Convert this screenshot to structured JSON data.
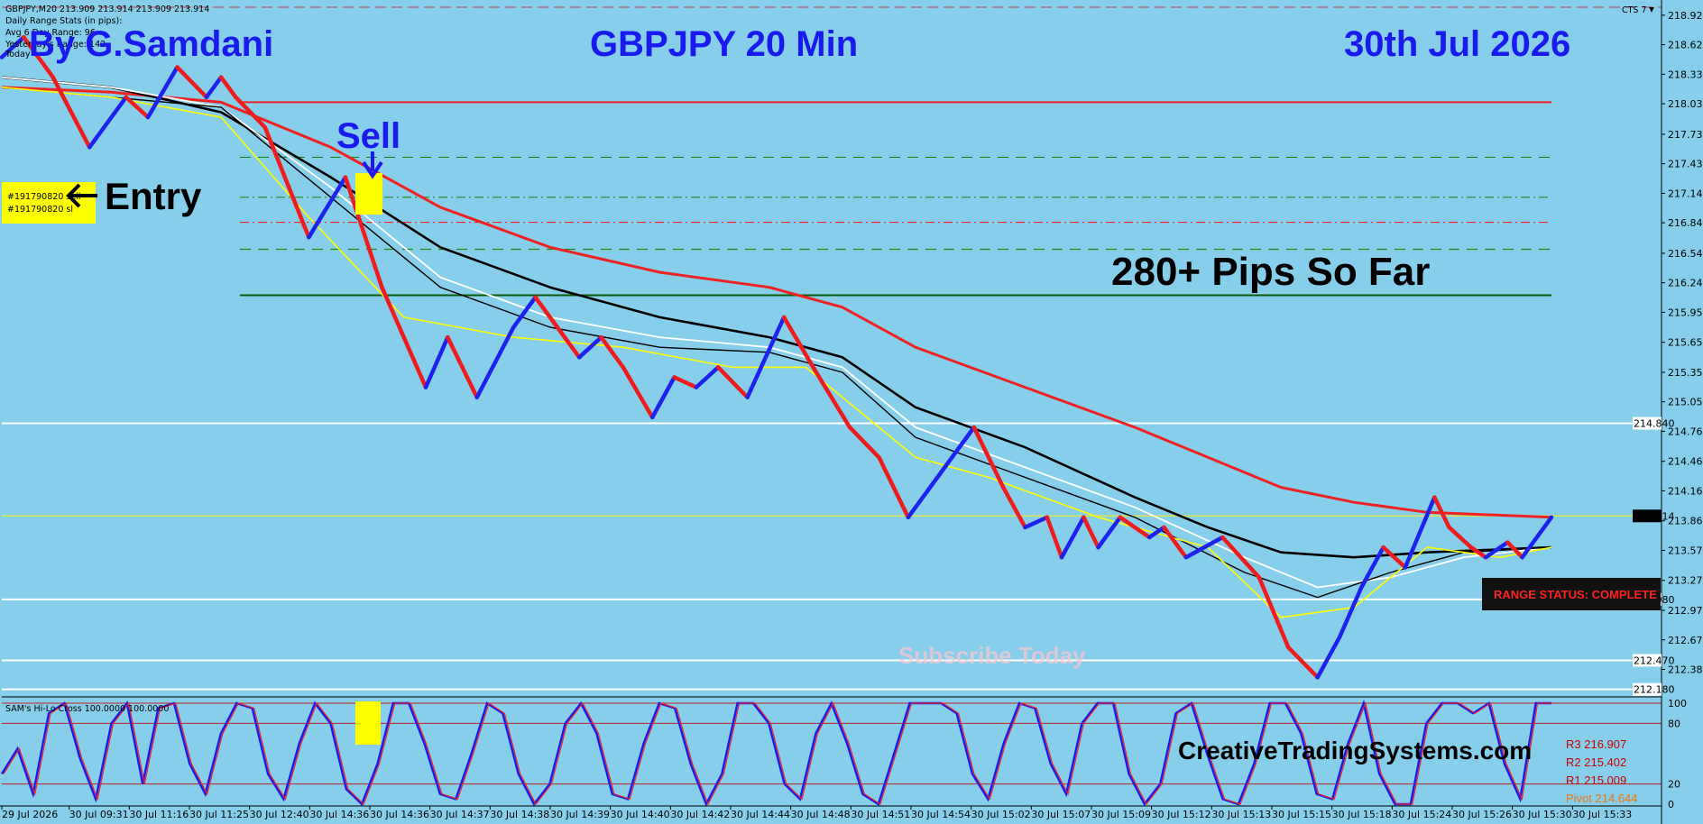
{
  "header": {
    "symbol_line": "GBPJPY,M20  213.909 213.914 213.909 213.914",
    "stats_lines": [
      "Daily Range Stats (in pips):",
      "Avg 6 Day Range: 96",
      "Yesterday's Range: 142",
      "Today"
    ],
    "corner_label": "CTS 7"
  },
  "overlays": {
    "author": "By G.Samdani",
    "chart_title": "GBPJPY 20 Min",
    "date": "30th Jul 2026",
    "sell_label": "Sell",
    "entry_label": "Entry",
    "order_lines": [
      "#191790820 sell",
      "#191790820 sl"
    ],
    "pips_label": "280+ Pips So Far",
    "watermark": "Subscribe Today",
    "range_status": "RANGE STATUS: COMPLETE",
    "website": "CreativeTradingSystems.com",
    "indicator_label": "SAM's Hi-Lo Cross 100.0000 100.0000"
  },
  "colors": {
    "background": "#87ceeb",
    "up": "#1e22ee",
    "down": "#ee1c1c",
    "ema_yellow": "#ffff00",
    "ema_white": "#ffffff",
    "ema_black": "#000000",
    "ema_red": "#ee2222",
    "overlay_blue": "#1a1aee",
    "highlight": "#ffff00"
  },
  "chart_data": {
    "type": "line",
    "title": "GBPJPY 20 Min",
    "x_tick_labels": [
      "29 Jul 2026",
      "30 Jul 09:31",
      "30 Jul 11:16",
      "30 Jul 11:25",
      "30 Jul 12:40",
      "30 Jul 14:36",
      "30 Jul 14:36",
      "30 Jul 14:37",
      "30 Jul 14:38",
      "30 Jul 14:39",
      "30 Jul 14:40",
      "30 Jul 14:42",
      "30 Jul 14:44",
      "30 Jul 14:48",
      "30 Jul 14:51",
      "30 Jul 14:54",
      "30 Jul 15:02",
      "30 Jul 15:07",
      "30 Jul 15:09",
      "30 Jul 15:12",
      "30 Jul 15:13",
      "30 Jul 15:15",
      "30 Jul 15:18",
      "30 Jul 15:24",
      "30 Jul 15:26",
      "30 Jul 15:30",
      "30 Jul 15:33"
    ],
    "y_ticks": [
      218.92,
      218.625,
      218.33,
      218.035,
      217.73,
      217.435,
      217.14,
      216.845,
      216.54,
      216.245,
      215.95,
      215.65,
      215.35,
      215.055,
      214.76,
      214.46,
      214.165,
      213.865,
      213.57,
      213.27,
      212.97,
      212.675,
      212.38
    ],
    "ylim": [
      212.15,
      219.0
    ],
    "y_tick_labels": [
      "218.920",
      "218.625",
      "218.330",
      "218.035",
      "217.730",
      "217.435",
      "217.140",
      "216.845",
      "216.540",
      "216.245",
      "215.950",
      "215.650",
      "215.350",
      "215.055",
      "214.760",
      "214.460",
      "214.165",
      "213.865",
      "213.570",
      "213.270",
      "212.970",
      "212.675",
      "212.380"
    ],
    "price_tags": [
      {
        "value": 214.84,
        "label": "214.840"
      },
      {
        "value": 213.914,
        "label": "213.914"
      },
      {
        "value": 213.08,
        "label": "213.080"
      },
      {
        "value": 212.47,
        "label": "212.470"
      },
      {
        "value": 212.18,
        "label": "212.180"
      }
    ],
    "renko_path": [
      [
        0,
        218.5
      ],
      [
        3,
        218.7
      ],
      [
        7,
        218.3
      ],
      [
        12,
        217.6
      ],
      [
        17,
        218.1
      ],
      [
        20,
        217.9
      ],
      [
        24,
        218.4
      ],
      [
        28,
        218.1
      ],
      [
        30,
        218.3
      ],
      [
        32,
        218.1
      ],
      [
        36,
        217.8
      ],
      [
        42,
        216.7
      ],
      [
        47,
        217.3
      ],
      [
        52,
        216.2
      ],
      [
        58,
        215.2
      ],
      [
        61,
        215.7
      ],
      [
        65,
        215.1
      ],
      [
        70,
        215.8
      ],
      [
        73,
        216.1
      ],
      [
        77,
        215.7
      ],
      [
        79,
        215.5
      ],
      [
        82,
        215.7
      ],
      [
        85,
        215.4
      ],
      [
        89,
        214.9
      ],
      [
        92,
        215.3
      ],
      [
        95,
        215.2
      ],
      [
        98,
        215.4
      ],
      [
        102,
        215.1
      ],
      [
        107,
        215.9
      ],
      [
        111,
        215.4
      ],
      [
        116,
        214.8
      ],
      [
        120,
        214.5
      ],
      [
        124,
        213.9
      ],
      [
        129,
        214.4
      ],
      [
        133,
        214.8
      ],
      [
        137,
        214.2
      ],
      [
        140,
        213.8
      ],
      [
        143,
        213.9
      ],
      [
        145,
        213.5
      ],
      [
        148,
        213.9
      ],
      [
        150,
        213.6
      ],
      [
        153,
        213.9
      ],
      [
        157,
        213.7
      ],
      [
        159,
        213.8
      ],
      [
        162,
        213.5
      ],
      [
        167,
        213.7
      ],
      [
        172,
        213.3
      ],
      [
        176,
        212.6
      ],
      [
        180,
        212.3
      ],
      [
        183,
        212.7
      ],
      [
        186,
        213.2
      ],
      [
        189,
        213.6
      ],
      [
        192,
        213.4
      ],
      [
        196,
        214.1
      ],
      [
        198,
        213.8
      ],
      [
        201,
        213.6
      ],
      [
        203,
        213.5
      ],
      [
        206,
        213.65
      ],
      [
        208,
        213.5
      ],
      [
        212,
        213.9
      ]
    ],
    "ema_yellow": [
      [
        0,
        218.2
      ],
      [
        15,
        218.1
      ],
      [
        30,
        217.9
      ],
      [
        42,
        216.9
      ],
      [
        55,
        215.9
      ],
      [
        70,
        215.7
      ],
      [
        85,
        215.6
      ],
      [
        100,
        215.4
      ],
      [
        110,
        215.4
      ],
      [
        125,
        214.5
      ],
      [
        135,
        214.3
      ],
      [
        150,
        213.9
      ],
      [
        165,
        213.6
      ],
      [
        175,
        212.9
      ],
      [
        185,
        213.0
      ],
      [
        195,
        213.6
      ],
      [
        205,
        213.5
      ],
      [
        212,
        213.6
      ]
    ],
    "ema_white": [
      [
        0,
        218.3
      ],
      [
        15,
        218.2
      ],
      [
        30,
        218.0
      ],
      [
        45,
        217.2
      ],
      [
        60,
        216.3
      ],
      [
        75,
        215.9
      ],
      [
        90,
        215.7
      ],
      [
        105,
        215.6
      ],
      [
        115,
        215.4
      ],
      [
        125,
        214.8
      ],
      [
        140,
        214.4
      ],
      [
        155,
        214.0
      ],
      [
        170,
        213.5
      ],
      [
        180,
        213.2
      ],
      [
        190,
        213.3
      ],
      [
        200,
        213.5
      ],
      [
        212,
        213.6
      ]
    ],
    "ema_black": [
      [
        0,
        218.2
      ],
      [
        15,
        218.1
      ],
      [
        30,
        218.0
      ],
      [
        45,
        217.1
      ],
      [
        60,
        216.2
      ],
      [
        75,
        215.8
      ],
      [
        90,
        215.6
      ],
      [
        105,
        215.55
      ],
      [
        115,
        215.35
      ],
      [
        125,
        214.7
      ],
      [
        140,
        214.3
      ],
      [
        155,
        213.9
      ],
      [
        170,
        213.35
      ],
      [
        180,
        213.1
      ],
      [
        190,
        213.35
      ],
      [
        200,
        213.55
      ],
      [
        212,
        213.6
      ]
    ],
    "ema_black_thick": [
      [
        0,
        218.3
      ],
      [
        15,
        218.2
      ],
      [
        30,
        217.95
      ],
      [
        45,
        217.3
      ],
      [
        60,
        216.6
      ],
      [
        75,
        216.2
      ],
      [
        90,
        215.9
      ],
      [
        105,
        215.7
      ],
      [
        115,
        215.5
      ],
      [
        125,
        215.0
      ],
      [
        140,
        214.6
      ],
      [
        155,
        214.1
      ],
      [
        165,
        213.8
      ],
      [
        175,
        213.55
      ],
      [
        185,
        213.5
      ],
      [
        195,
        213.55
      ],
      [
        212,
        213.6
      ]
    ],
    "ema_red": [
      [
        0,
        218.2
      ],
      [
        15,
        218.15
      ],
      [
        30,
        218.05
      ],
      [
        45,
        217.6
      ],
      [
        60,
        217.0
      ],
      [
        75,
        216.6
      ],
      [
        90,
        216.35
      ],
      [
        105,
        216.2
      ],
      [
        115,
        216.0
      ],
      [
        125,
        215.6
      ],
      [
        140,
        215.2
      ],
      [
        155,
        214.8
      ],
      [
        165,
        214.5
      ],
      [
        175,
        214.2
      ],
      [
        185,
        214.05
      ],
      [
        195,
        213.95
      ],
      [
        212,
        213.9
      ]
    ],
    "horizontal_levels": [
      {
        "value": 218.05,
        "color": "#ee2222",
        "style": "solid"
      },
      {
        "value": 217.5,
        "color": "#1a8a1a",
        "style": "dashed"
      },
      {
        "value": 217.1,
        "color": "#1a8a1a",
        "style": "dashdot"
      },
      {
        "value": 216.85,
        "color": "#ee2222",
        "style": "dashdot"
      },
      {
        "value": 216.58,
        "color": "#1a8a1a",
        "style": "dashed"
      },
      {
        "value": 216.12,
        "color": "#0a5a0a",
        "style": "solid"
      }
    ],
    "oscillator": {
      "name": "SAM's Hi-Lo Cross",
      "ylim": [
        0,
        100
      ],
      "y_tick_labels": [
        "100",
        "80",
        "20",
        "0"
      ],
      "levels": [
        80,
        20
      ],
      "values": [
        30,
        55,
        10,
        90,
        100,
        45,
        5,
        80,
        100,
        20,
        95,
        100,
        40,
        10,
        70,
        100,
        95,
        30,
        5,
        60,
        100,
        80,
        15,
        0,
        40,
        100,
        100,
        60,
        10,
        5,
        50,
        100,
        90,
        30,
        0,
        20,
        80,
        100,
        70,
        10,
        5,
        60,
        100,
        95,
        40,
        0,
        30,
        100,
        100,
        80,
        20,
        5,
        70,
        100,
        60,
        10,
        0,
        50,
        100,
        100,
        100,
        90,
        30,
        5,
        60,
        100,
        95,
        40,
        10,
        80,
        100,
        100,
        30,
        0,
        20,
        90,
        100,
        50,
        5,
        0,
        40,
        100,
        100,
        70,
        10,
        5,
        60,
        100,
        30,
        0,
        0,
        80,
        100,
        100,
        90,
        100,
        40,
        5,
        100,
        100
      ]
    },
    "pivots": [
      "R3 216.907",
      "R2 215.402",
      "R1 215.009",
      "Pivot 214.644"
    ]
  }
}
